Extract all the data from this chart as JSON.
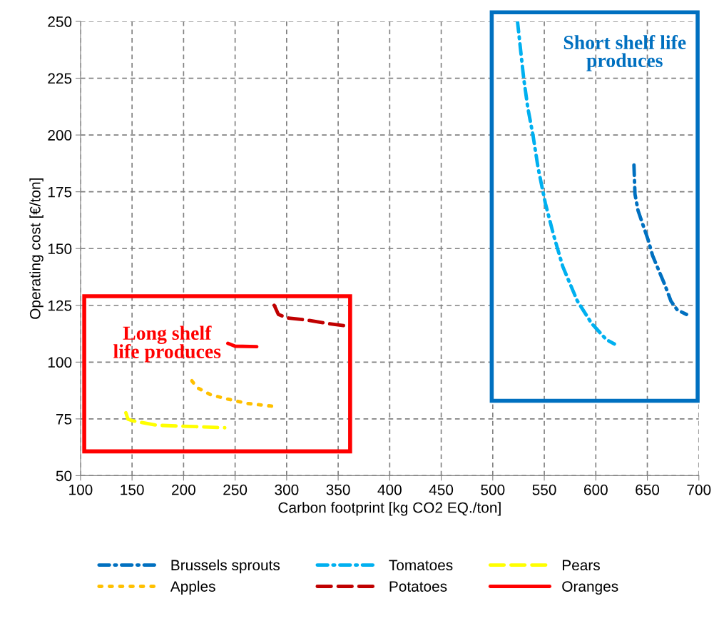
{
  "chart_data": {
    "type": "line",
    "xlabel": "Carbon footprint [kg CO2 EQ./ton]",
    "ylabel": "Operating cost [€/ton]",
    "xlim": [
      100,
      700
    ],
    "xticks": [
      100,
      150,
      200,
      250,
      300,
      350,
      400,
      450,
      500,
      550,
      600,
      650,
      700
    ],
    "ylim": [
      50,
      250
    ],
    "yticks": [
      50,
      75,
      100,
      125,
      150,
      175,
      200,
      225,
      250
    ],
    "grid": true,
    "legend": "bottom",
    "marker": "none",
    "annotations": [
      "Short shelf life produces",
      "Long shelf life produces"
    ],
    "series": [
      {
        "name": "Brussels sprouts",
        "color": "#0070c0",
        "line_style": "dashdot",
        "x": [
          637,
          638,
          641,
          651,
          655,
          667,
          673,
          679,
          688
        ],
        "values": [
          186.8,
          174,
          166.7,
          153.5,
          147,
          134,
          126.8,
          123,
          121
        ]
      },
      {
        "name": "Tomatoes",
        "color": "#00b0f0",
        "line_style": "dashdot",
        "x": [
          524,
          530,
          534,
          539,
          544,
          551,
          559,
          568,
          582,
          596,
          610,
          618
        ],
        "values": [
          250,
          225,
          212,
          200,
          185.5,
          170,
          156,
          142,
          127,
          117,
          110,
          108
        ]
      },
      {
        "name": "Pears",
        "color": "#ffff00",
        "line_style": "dashed",
        "x": [
          144,
          146,
          151,
          174,
          212,
          240
        ],
        "values": [
          77.7,
          74.9,
          74.1,
          72.2,
          71.6,
          71.1
        ]
      },
      {
        "name": "Apples",
        "color": "#ffc000",
        "line_style": "dotted",
        "x": [
          208,
          213,
          226,
          242,
          262,
          288
        ],
        "values": [
          91.8,
          88.8,
          85.7,
          83.8,
          81.8,
          80.5
        ]
      },
      {
        "name": "Potatoes",
        "color": "#c00000",
        "line_style": "dashed",
        "x": [
          288,
          292,
          300,
          320,
          340,
          357
        ],
        "values": [
          125,
          121,
          119.5,
          118.5,
          117,
          116
        ]
      },
      {
        "name": "Oranges",
        "color": "#ff0000",
        "line_style": "solid",
        "x": [
          243,
          250,
          271
        ],
        "values": [
          108.3,
          107,
          106.8
        ]
      }
    ]
  }
}
